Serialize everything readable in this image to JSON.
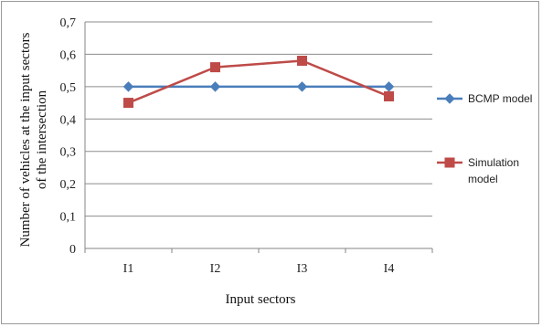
{
  "chart_data": {
    "type": "line",
    "title": "",
    "xlabel": "Input sectors",
    "ylabel": "Number of vehicles at the input sectors of the intersection",
    "ylim": [
      0,
      0.7
    ],
    "y_ticks": [
      "0",
      "0,1",
      "0,2",
      "0,3",
      "0,4",
      "0,5",
      "0,6",
      "0,7"
    ],
    "categories": [
      "I1",
      "I2",
      "I3",
      "I4"
    ],
    "grid": "horizontal",
    "legend_position": "right",
    "series": [
      {
        "name": "BCMP model",
        "values": [
          0.5,
          0.5,
          0.5,
          0.5
        ],
        "color": "#4a7ebb",
        "marker": "diamond"
      },
      {
        "name": "Simulation model",
        "values": [
          0.45,
          0.56,
          0.58,
          0.47
        ],
        "color": "#be4b48",
        "marker": "square"
      }
    ]
  }
}
